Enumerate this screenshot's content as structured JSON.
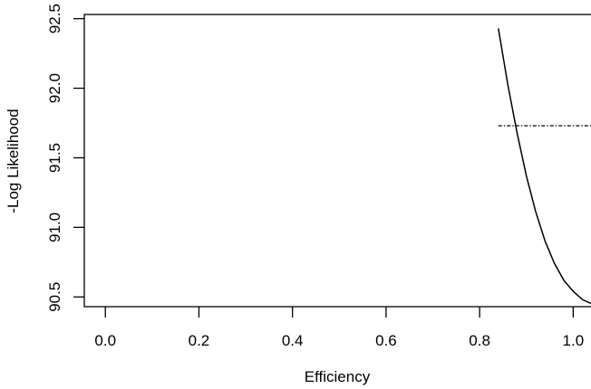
{
  "chart_data": {
    "type": "line",
    "title": "",
    "xlabel": "Efficiency",
    "ylabel": "-Log Likelihood",
    "xlim": [
      -0.045,
      1.04
    ],
    "ylim": [
      90.43,
      92.53
    ],
    "x_ticks": [
      0.0,
      0.2,
      0.4,
      0.6,
      0.8,
      1.0
    ],
    "x_tick_labels": [
      "0.0",
      "0.2",
      "0.4",
      "0.6",
      "0.8",
      "1.0"
    ],
    "y_ticks": [
      90.5,
      91.0,
      91.5,
      92.0,
      92.5
    ],
    "y_tick_labels": [
      "90.5",
      "91.0",
      "91.5",
      "92.0",
      "92.5"
    ],
    "grid": false,
    "series": [
      {
        "style": "solid",
        "x": [
          0.84,
          0.86,
          0.88,
          0.9,
          0.92,
          0.94,
          0.96,
          0.98,
          1.0,
          1.02,
          1.04
        ],
        "y": [
          92.43,
          92.03,
          91.68,
          91.37,
          91.11,
          90.9,
          90.74,
          90.62,
          90.54,
          90.48,
          90.45
        ]
      },
      {
        "style": "dash-dot",
        "x": [
          0.84,
          1.04
        ],
        "y": [
          91.73,
          91.73
        ]
      }
    ]
  }
}
